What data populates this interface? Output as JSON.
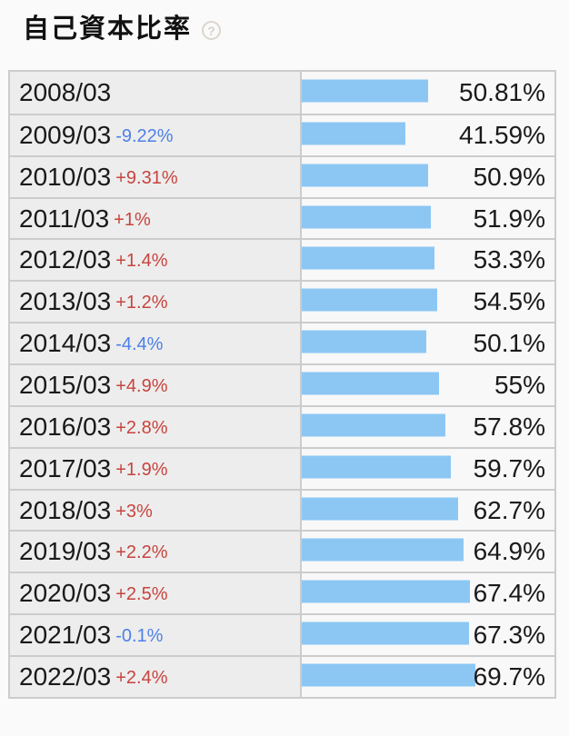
{
  "page": {
    "title": "自己資本比率",
    "help_icon_glyph": "?"
  },
  "colors": {
    "bar": "#8cc7f4",
    "positive_change": "#c7443e",
    "negative_change": "#4d80e6",
    "label_cell_bg": "#ededed",
    "value_cell_bg": "#f8f8f8",
    "border": "#cccccc",
    "page_bg": "#fafafa",
    "text": "#1a1a1a"
  },
  "chart_data": {
    "type": "bar",
    "orientation": "horizontal",
    "title": "自己資本比率",
    "unit": "%",
    "xlim": [
      0,
      100
    ],
    "legend": null,
    "grid": false,
    "categories": [
      "2008/03",
      "2009/03",
      "2010/03",
      "2011/03",
      "2012/03",
      "2013/03",
      "2014/03",
      "2015/03",
      "2016/03",
      "2017/03",
      "2018/03",
      "2019/03",
      "2020/03",
      "2021/03",
      "2022/03"
    ],
    "values": [
      50.81,
      41.59,
      50.9,
      51.9,
      53.3,
      54.5,
      50.1,
      55,
      57.8,
      59.7,
      62.7,
      64.9,
      67.4,
      67.3,
      69.7
    ],
    "rows": [
      {
        "period": "2008/03",
        "change": "",
        "change_direction": "none",
        "value": 50.81,
        "value_label": "50.81%"
      },
      {
        "period": "2009/03",
        "change": "-9.22%",
        "change_direction": "negative",
        "value": 41.59,
        "value_label": "41.59%"
      },
      {
        "period": "2010/03",
        "change": "+9.31%",
        "change_direction": "positive",
        "value": 50.9,
        "value_label": "50.9%"
      },
      {
        "period": "2011/03",
        "change": "+1%",
        "change_direction": "positive",
        "value": 51.9,
        "value_label": "51.9%"
      },
      {
        "period": "2012/03",
        "change": "+1.4%",
        "change_direction": "positive",
        "value": 53.3,
        "value_label": "53.3%"
      },
      {
        "period": "2013/03",
        "change": "+1.2%",
        "change_direction": "positive",
        "value": 54.5,
        "value_label": "54.5%"
      },
      {
        "period": "2014/03",
        "change": "-4.4%",
        "change_direction": "negative",
        "value": 50.1,
        "value_label": "50.1%"
      },
      {
        "period": "2015/03",
        "change": "+4.9%",
        "change_direction": "positive",
        "value": 55,
        "value_label": "55%"
      },
      {
        "period": "2016/03",
        "change": "+2.8%",
        "change_direction": "positive",
        "value": 57.8,
        "value_label": "57.8%"
      },
      {
        "period": "2017/03",
        "change": "+1.9%",
        "change_direction": "positive",
        "value": 59.7,
        "value_label": "59.7%"
      },
      {
        "period": "2018/03",
        "change": "+3%",
        "change_direction": "positive",
        "value": 62.7,
        "value_label": "62.7%"
      },
      {
        "period": "2019/03",
        "change": "+2.2%",
        "change_direction": "positive",
        "value": 64.9,
        "value_label": "64.9%"
      },
      {
        "period": "2020/03",
        "change": "+2.5%",
        "change_direction": "positive",
        "value": 67.4,
        "value_label": "67.4%"
      },
      {
        "period": "2021/03",
        "change": "-0.1%",
        "change_direction": "negative",
        "value": 67.3,
        "value_label": "67.3%"
      },
      {
        "period": "2022/03",
        "change": "+2.4%",
        "change_direction": "positive",
        "value": 69.7,
        "value_label": "69.7%"
      }
    ]
  }
}
